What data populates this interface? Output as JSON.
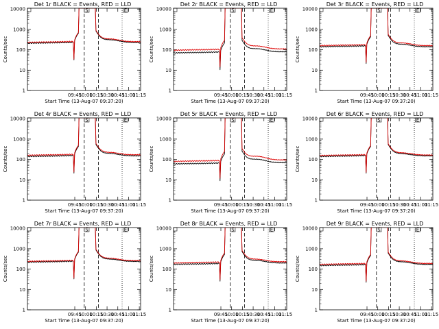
{
  "chart_data": [
    {
      "type": "line",
      "title": "Det 1r BLACK = Events, RED = LLD",
      "xlabel": "Start Time (13-Aug-07 09:37:20)",
      "ylabel": "Counts/sec",
      "yscale": "log",
      "ylim": [
        1,
        11000
      ],
      "xlim": [
        8.65,
        11.28
      ],
      "xtick_labels": [
        "09:45",
        "10:00",
        "10:15",
        "10:30",
        "10:45",
        "11:00",
        "11:15"
      ],
      "ytick_labels": [
        "1",
        "10",
        "100",
        "1000",
        "10000"
      ],
      "markers": {
        "dashed": [
          9.97,
          10.3
        ],
        "dotted": [
          10.85
        ],
        "box_labels": [
          "S",
          "E"
        ]
      },
      "spike": [
        9.84,
        10.23
      ],
      "series": [
        {
          "name": "Events",
          "color": "#000000",
          "baseline_pre": 210,
          "baseline_post": 230,
          "hump": 300
        },
        {
          "name": "LLD",
          "color": "#dd0000",
          "baseline_pre": 230,
          "baseline_post": 250,
          "hump": 330
        }
      ]
    },
    {
      "type": "line",
      "title": "Det 2r BLACK = Events, RED = LLD",
      "xlabel": "Start Time (13-Aug-07 09:37:20)",
      "ylabel": "Counts/sec",
      "yscale": "log",
      "ylim": [
        1,
        11000
      ],
      "xlim": [
        8.65,
        11.28
      ],
      "xtick_labels": [
        "09:45",
        "10:00",
        "10:15",
        "10:30",
        "10:45",
        "11:00",
        "11:15"
      ],
      "ytick_labels": [
        "1",
        "10",
        "100",
        "1000",
        "10000"
      ],
      "markers": {
        "dashed": [
          9.97,
          10.3
        ],
        "dotted": [
          10.85
        ],
        "box_labels": [
          "S",
          "E"
        ]
      },
      "spike": [
        9.84,
        10.23
      ],
      "series": [
        {
          "name": "Events",
          "color": "#000000",
          "baseline_pre": 70,
          "baseline_post": 80,
          "hump": 110
        },
        {
          "name": "LLD",
          "color": "#dd0000",
          "baseline_pre": 95,
          "baseline_post": 110,
          "hump": 150
        }
      ]
    },
    {
      "type": "line",
      "title": "Det 3r BLACK = Events, RED = LLD",
      "xlabel": "Start Time (13-Aug-07 09:37:20)",
      "ylabel": "Counts/sec",
      "yscale": "log",
      "ylim": [
        1,
        11000
      ],
      "xlim": [
        8.65,
        11.28
      ],
      "xtick_labels": [
        "09:45",
        "10:00",
        "10:15",
        "10:30",
        "10:45",
        "11:00",
        "11:15"
      ],
      "ytick_labels": [
        "1",
        "10",
        "100",
        "1000",
        "10000"
      ],
      "markers": {
        "dashed": [
          9.97,
          10.3
        ],
        "dotted": [
          10.85
        ],
        "box_labels": [
          "S",
          "E"
        ]
      },
      "spike": [
        9.84,
        10.23
      ],
      "series": [
        {
          "name": "Events",
          "color": "#000000",
          "baseline_pre": 140,
          "baseline_post": 140,
          "hump": 180
        },
        {
          "name": "LLD",
          "color": "#dd0000",
          "baseline_pre": 160,
          "baseline_post": 160,
          "hump": 210
        }
      ]
    },
    {
      "type": "line",
      "title": "Det 4r BLACK = Events, RED = LLD",
      "xlabel": "Start Time (13-Aug-07 09:37:20)",
      "ylabel": "Counts/sec",
      "yscale": "log",
      "ylim": [
        1,
        11000
      ],
      "xlim": [
        8.65,
        11.28
      ],
      "xtick_labels": [
        "09:45",
        "10:00",
        "10:15",
        "10:30",
        "10:45",
        "11:00",
        "11:15"
      ],
      "ytick_labels": [
        "1",
        "10",
        "100",
        "1000",
        "10000"
      ],
      "markers": {
        "dashed": [
          9.97,
          10.3
        ],
        "dotted": [
          10.85
        ],
        "box_labels": [
          "S",
          "E"
        ]
      },
      "spike": [
        9.84,
        10.23
      ],
      "series": [
        {
          "name": "Events",
          "color": "#000000",
          "baseline_pre": 140,
          "baseline_post": 150,
          "hump": 190
        },
        {
          "name": "LLD",
          "color": "#dd0000",
          "baseline_pre": 160,
          "baseline_post": 170,
          "hump": 215
        }
      ]
    },
    {
      "type": "line",
      "title": "Det 5r BLACK = Events, RED = LLD",
      "xlabel": "Start Time (13-Aug-07 09:37:20)",
      "ylabel": "Counts/sec",
      "yscale": "log",
      "ylim": [
        1,
        11000
      ],
      "xlim": [
        8.65,
        11.28
      ],
      "xtick_labels": [
        "09:45",
        "10:00",
        "10:15",
        "10:30",
        "10:45",
        "11:00",
        "11:15"
      ],
      "ytick_labels": [
        "1",
        "10",
        "100",
        "1000",
        "10000"
      ],
      "markers": {
        "dashed": [
          9.97,
          10.3
        ],
        "dotted": [
          10.85
        ],
        "box_labels": [
          "S",
          "E"
        ]
      },
      "spike": [
        9.84,
        10.23
      ],
      "series": [
        {
          "name": "Events",
          "color": "#000000",
          "baseline_pre": 60,
          "baseline_post": 70,
          "hump": 100
        },
        {
          "name": "LLD",
          "color": "#dd0000",
          "baseline_pre": 80,
          "baseline_post": 95,
          "hump": 140
        }
      ]
    },
    {
      "type": "line",
      "title": "Det 6r BLACK = Events, RED = LLD",
      "xlabel": "Start Time (13-Aug-07 09:37:20)",
      "ylabel": "Counts/sec",
      "yscale": "log",
      "ylim": [
        1,
        11000
      ],
      "xlim": [
        8.65,
        11.28
      ],
      "xtick_labels": [
        "09:45",
        "10:00",
        "10:15",
        "10:30",
        "10:45",
        "11:00",
        "11:15"
      ],
      "ytick_labels": [
        "1",
        "10",
        "100",
        "1000",
        "10000"
      ],
      "markers": {
        "dashed": [
          9.97,
          10.3
        ],
        "dotted": [
          10.85
        ],
        "box_labels": [
          "S",
          "E"
        ]
      },
      "spike": [
        9.84,
        10.23
      ],
      "series": [
        {
          "name": "Events",
          "color": "#000000",
          "baseline_pre": 140,
          "baseline_post": 150,
          "hump": 185
        },
        {
          "name": "LLD",
          "color": "#dd0000",
          "baseline_pre": 155,
          "baseline_post": 165,
          "hump": 205
        }
      ]
    },
    {
      "type": "line",
      "title": "Det 7r BLACK = Events, RED = LLD",
      "xlabel": "Start Time (13-Aug-07 09:37:20)",
      "ylabel": "Counts/sec",
      "yscale": "log",
      "ylim": [
        1,
        11000
      ],
      "xlim": [
        8.65,
        11.28
      ],
      "xtick_labels": [
        "09:45",
        "10:00",
        "10:15",
        "10:30",
        "10:45",
        "11:00",
        "11:15"
      ],
      "ytick_labels": [
        "1",
        "10",
        "100",
        "1000",
        "10000"
      ],
      "markers": {
        "dashed": [
          9.97,
          10.3
        ],
        "dotted": [
          10.85
        ],
        "box_labels": [
          "S",
          "E"
        ]
      },
      "spike": [
        9.84,
        10.23
      ],
      "series": [
        {
          "name": "Events",
          "color": "#000000",
          "baseline_pre": 220,
          "baseline_post": 240,
          "hump": 300
        },
        {
          "name": "LLD",
          "color": "#dd0000",
          "baseline_pre": 240,
          "baseline_post": 260,
          "hump": 330
        }
      ]
    },
    {
      "type": "line",
      "title": "Det 8r BLACK = Events, RED = LLD",
      "xlabel": "Start Time (13-Aug-07 09:37:20)",
      "ylabel": "Counts/sec",
      "yscale": "log",
      "ylim": [
        1,
        11000
      ],
      "xlim": [
        8.65,
        11.28
      ],
      "xtick_labels": [
        "09:45",
        "10:00",
        "10:15",
        "10:30",
        "10:45",
        "11:00",
        "11:15"
      ],
      "ytick_labels": [
        "1",
        "10",
        "100",
        "1000",
        "10000"
      ],
      "markers": {
        "dashed": [
          9.97,
          10.3
        ],
        "dotted": [
          10.85
        ],
        "box_labels": [
          "S",
          "E"
        ]
      },
      "spike": [
        9.84,
        10.23
      ],
      "series": [
        {
          "name": "Events",
          "color": "#000000",
          "baseline_pre": 170,
          "baseline_post": 200,
          "hump": 260
        },
        {
          "name": "LLD",
          "color": "#dd0000",
          "baseline_pre": 200,
          "baseline_post": 230,
          "hump": 300
        }
      ]
    },
    {
      "type": "line",
      "title": "Det 9r BLACK = Events, RED = LLD",
      "xlabel": "Start Time (13-Aug-07 09:37:20)",
      "ylabel": "Counts/sec",
      "yscale": "log",
      "ylim": [
        1,
        11000
      ],
      "xlim": [
        8.65,
        11.28
      ],
      "xtick_labels": [
        "09:45",
        "10:00",
        "10:15",
        "10:30",
        "10:45",
        "11:00",
        "11:15"
      ],
      "ytick_labels": [
        "1",
        "10",
        "100",
        "1000",
        "10000"
      ],
      "markers": {
        "dashed": [
          9.97,
          10.3
        ],
        "dotted": [
          10.85
        ],
        "box_labels": [
          "S",
          "E"
        ]
      },
      "spike": [
        9.84,
        10.23
      ],
      "series": [
        {
          "name": "Events",
          "color": "#000000",
          "baseline_pre": 150,
          "baseline_post": 170,
          "hump": 220
        },
        {
          "name": "LLD",
          "color": "#dd0000",
          "baseline_pre": 170,
          "baseline_post": 190,
          "hump": 245
        }
      ]
    }
  ]
}
